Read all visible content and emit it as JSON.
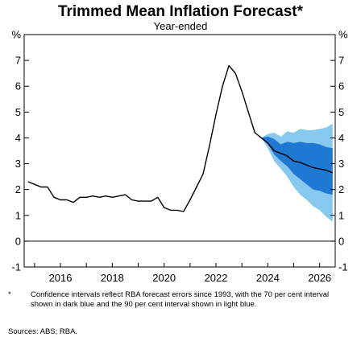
{
  "chart_data": {
    "type": "line",
    "title": "Trimmed Mean Inflation Forecast*",
    "subtitle": "Year-ended",
    "unit_label": "%",
    "ylim": [
      -1,
      8
    ],
    "yticks": [
      -1,
      0,
      1,
      2,
      3,
      4,
      5,
      6,
      7
    ],
    "xlim": [
      2014.6,
      2026.6
    ],
    "xticks": [
      2016,
      2018,
      2020,
      2022,
      2024,
      2026
    ],
    "grid": false,
    "colors": {
      "line": "#000000",
      "ci70": "#1f78d1",
      "ci90": "#86c8ee",
      "axis": "#000000"
    },
    "series": [
      {
        "type": "line",
        "x": [
          2014.75,
          2015.0,
          2015.25,
          2015.5,
          2015.75,
          2016.0,
          2016.25,
          2016.5,
          2016.75,
          2017.0,
          2017.25,
          2017.5,
          2017.75,
          2018.0,
          2018.25,
          2018.5,
          2018.75,
          2019.0,
          2019.25,
          2019.5,
          2019.75,
          2020.0,
          2020.25,
          2020.5,
          2020.75,
          2021.0,
          2021.25,
          2021.5,
          2021.75,
          2022.0,
          2022.25,
          2022.5,
          2022.75,
          2023.0,
          2023.25,
          2023.5,
          2023.75,
          2024.0,
          2024.25,
          2024.5,
          2024.75,
          2025.0,
          2025.25,
          2025.5,
          2025.75,
          2026.0,
          2026.25,
          2026.5
        ],
        "y": [
          2.3,
          2.2,
          2.1,
          2.1,
          1.7,
          1.6,
          1.6,
          1.5,
          1.7,
          1.7,
          1.75,
          1.7,
          1.75,
          1.7,
          1.75,
          1.8,
          1.6,
          1.55,
          1.55,
          1.55,
          1.7,
          1.3,
          1.2,
          1.2,
          1.15,
          1.6,
          2.1,
          2.6,
          3.7,
          4.9,
          6.0,
          6.8,
          6.5,
          5.8,
          5.0,
          4.2,
          4.0,
          3.8,
          3.5,
          3.4,
          3.3,
          3.1,
          3.05,
          2.95,
          2.85,
          2.8,
          2.75,
          2.65
        ]
      }
    ],
    "confidence_intervals": {
      "x": [
        2023.75,
        2024.0,
        2024.25,
        2024.5,
        2024.75,
        2025.0,
        2025.25,
        2025.5,
        2025.75,
        2026.0,
        2026.25,
        2026.5
      ],
      "ci90_upper": [
        4.0,
        4.15,
        4.2,
        4.05,
        4.25,
        4.2,
        4.35,
        4.3,
        4.3,
        4.35,
        4.4,
        4.55
      ],
      "ci90_lower": [
        4.0,
        3.6,
        3.1,
        2.8,
        2.5,
        2.1,
        1.8,
        1.6,
        1.35,
        1.2,
        0.95,
        0.75
      ],
      "ci70_upper": [
        4.0,
        4.05,
        3.95,
        3.75,
        3.85,
        3.8,
        3.85,
        3.8,
        3.8,
        3.75,
        3.65,
        3.6
      ],
      "ci70_lower": [
        4.0,
        3.75,
        3.35,
        3.1,
        2.9,
        2.6,
        2.4,
        2.2,
        2.0,
        1.95,
        1.85,
        1.8
      ]
    }
  },
  "footnote": {
    "marker": "*",
    "text": "Confidence intervals reflect RBA forecast errors since 1993, with the 70 per cent interval shown in dark blue and the 90 per cent interval shown in light blue."
  },
  "sources": "Sources: ABS; RBA."
}
